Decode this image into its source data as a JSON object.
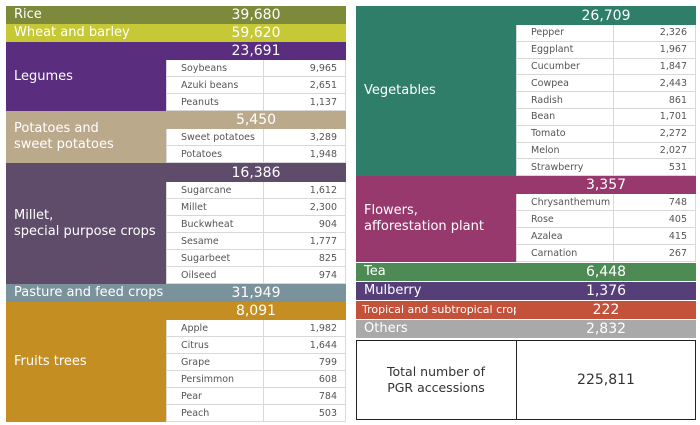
{
  "colors": {
    "rice": "#7d8a3c",
    "wheat": "#c6c935",
    "legumes": "#5a2d7e",
    "potatoes": "#bba98c",
    "millet": "#5e4c6a",
    "pasture": "#7a929b",
    "fruits": "#c48e22",
    "vegetables": "#2f7e6a",
    "flowers": "#98396e",
    "tea": "#4e8a54",
    "mulberry": "#563e78",
    "tropical": "#c4513a",
    "others": "#a9a9a9"
  },
  "left": {
    "rice": {
      "label": "Rice",
      "value": "39,680"
    },
    "wheat": {
      "label": "Wheat and barley",
      "value": "59,620"
    },
    "legumes": {
      "label": "Legumes",
      "value": "23,691",
      "items": [
        {
          "name": "Soybeans",
          "value": "9,965"
        },
        {
          "name": "Azuki beans",
          "value": "2,651"
        },
        {
          "name": "Peanuts",
          "value": "1,137"
        }
      ]
    },
    "potatoes": {
      "label_line1": "Potatoes and",
      "label_line2": "sweet potatoes",
      "value": "5,450",
      "items": [
        {
          "name": "Sweet potatoes",
          "value": "3,289"
        },
        {
          "name": "Potatoes",
          "value": "1,948"
        }
      ]
    },
    "millet": {
      "label_line1": "Millet,",
      "label_line2": "special purpose crops",
      "value": "16,386",
      "items": [
        {
          "name": "Sugarcane",
          "value": "1,612"
        },
        {
          "name": "Millet",
          "value": "2,300"
        },
        {
          "name": "Buckwheat",
          "value": "904"
        },
        {
          "name": "Sesame",
          "value": "1,777"
        },
        {
          "name": "Sugarbeet",
          "value": "825"
        },
        {
          "name": "Oilseed",
          "value": "974"
        }
      ]
    },
    "pasture": {
      "label": "Pasture and feed crops",
      "value": "31,949"
    },
    "fruits": {
      "label": "Fruits trees",
      "value": "8,091",
      "items": [
        {
          "name": "Apple",
          "value": "1,982"
        },
        {
          "name": "Citrus",
          "value": "1,644"
        },
        {
          "name": "Grape",
          "value": "799"
        },
        {
          "name": "Persimmon",
          "value": "608"
        },
        {
          "name": "Pear",
          "value": "784"
        },
        {
          "name": "Peach",
          "value": "503"
        }
      ]
    }
  },
  "right": {
    "vegetables": {
      "label": "Vegetables",
      "value": "26,709",
      "items": [
        {
          "name": "Pepper",
          "value": "2,326"
        },
        {
          "name": "Eggplant",
          "value": "1,967"
        },
        {
          "name": "Cucumber",
          "value": "1,847"
        },
        {
          "name": "Cowpea",
          "value": "2,443"
        },
        {
          "name": "Radish",
          "value": "861"
        },
        {
          "name": "Bean",
          "value": "1,701"
        },
        {
          "name": "Tomato",
          "value": "2,272"
        },
        {
          "name": "Melon",
          "value": "2,027"
        },
        {
          "name": "Strawberry",
          "value": "531"
        }
      ]
    },
    "flowers": {
      "label_line1": "Flowers,",
      "label_line2": "afforestation plant",
      "value": "3,357",
      "items": [
        {
          "name": "Chrysanthemum",
          "value": "748"
        },
        {
          "name": "Rose",
          "value": "405"
        },
        {
          "name": "Azalea",
          "value": "415"
        },
        {
          "name": "Carnation",
          "value": "267"
        }
      ]
    },
    "tea": {
      "label": "Tea",
      "value": "6,448"
    },
    "mulberry": {
      "label": "Mulberry",
      "value": "1,376"
    },
    "tropical": {
      "label": "Tropical and subtropical crops",
      "value": "222"
    },
    "others": {
      "label": "Others",
      "value": "2,832"
    },
    "total": {
      "label_line1": "Total number of",
      "label_line2": "PGR accessions",
      "value": "225,811"
    }
  }
}
